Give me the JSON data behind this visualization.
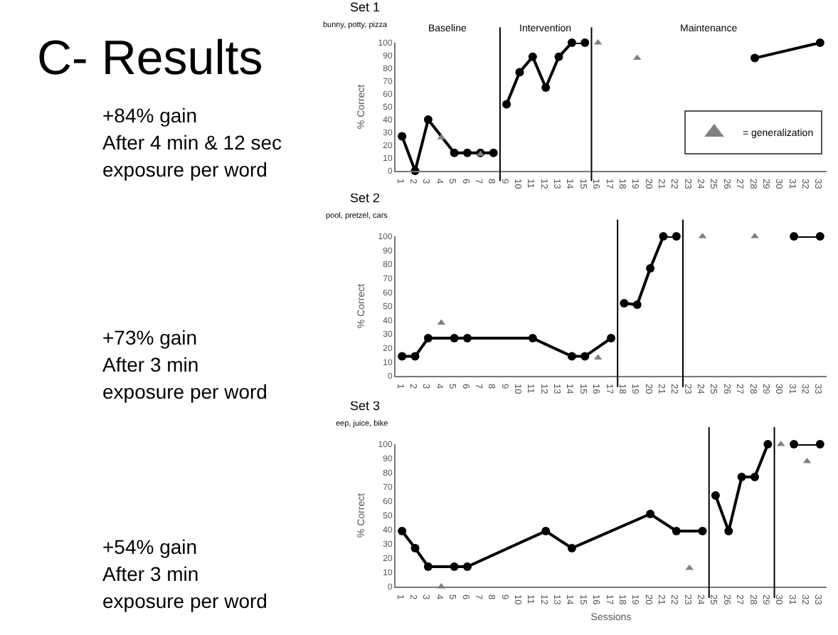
{
  "chart_data": [
    {
      "type": "other",
      "title": "C- Results",
      "annotations": [
        "+84% gain\nAfter 4 min & 12 sec\nexposure per word",
        "+73% gain\nAfter 3 min\nexposure per word",
        "+54% gain\nAfter 3 min\nexposure per word"
      ]
    },
    {
      "type": "line",
      "title": "Set 1",
      "subtitle": "bunny, potty, pizza",
      "ylabel": "% Correct",
      "xlim": [
        0.5,
        33.5
      ],
      "xticks": [
        1,
        2,
        3,
        4,
        5,
        6,
        7,
        8,
        9,
        10,
        11,
        12,
        13,
        14,
        15,
        16,
        17,
        18,
        19,
        20,
        21,
        22,
        23,
        24,
        25,
        26,
        27,
        28,
        29,
        30,
        31,
        32,
        33
      ],
      "ylim": [
        0,
        100
      ],
      "yticks": [
        0,
        10,
        20,
        30,
        40,
        50,
        60,
        70,
        80,
        90,
        100
      ],
      "grid": false,
      "legend": "right",
      "annotations": [
        "Baseline",
        "Intervention",
        "Maintenance"
      ],
      "ref_lines": [
        {
          "axis": "x",
          "value": 8.5
        },
        {
          "axis": "x",
          "value": 15.5
        }
      ],
      "series": [
        {
          "color": "#000000",
          "marker": "circle",
          "x": [
            1,
            2,
            3,
            5,
            6,
            7,
            8
          ],
          "values": [
            27,
            0,
            40,
            14,
            14,
            14,
            14
          ]
        },
        {
          "color": "#000000",
          "marker": "circle",
          "x": [
            9,
            10,
            11,
            12,
            13,
            14,
            15
          ],
          "values": [
            52,
            77,
            89,
            65,
            89,
            100,
            100
          ]
        },
        {
          "color": "#000000",
          "marker": "circle",
          "x": [
            28,
            33
          ],
          "values": [
            88,
            100
          ]
        },
        {
          "name": "= generalization",
          "type": "scatter",
          "color": "#808080",
          "marker": "triangle",
          "x": [
            4,
            7,
            16,
            19
          ],
          "values": [
            26,
            13,
            100,
            88
          ]
        }
      ]
    },
    {
      "type": "line",
      "title": "Set 2",
      "subtitle": "pool, pretzel, cars",
      "ylabel": "% Correct",
      "xlim": [
        0.5,
        33.5
      ],
      "xticks": [
        1,
        2,
        3,
        4,
        5,
        6,
        7,
        8,
        9,
        10,
        11,
        12,
        13,
        14,
        15,
        16,
        17,
        18,
        19,
        20,
        21,
        22,
        23,
        24,
        25,
        26,
        27,
        28,
        29,
        30,
        31,
        32,
        33
      ],
      "ylim": [
        0,
        100
      ],
      "yticks": [
        0,
        10,
        20,
        30,
        40,
        50,
        60,
        70,
        80,
        90,
        100
      ],
      "grid": false,
      "legend": false,
      "ref_lines": [
        {
          "axis": "x",
          "value": 17.5
        },
        {
          "axis": "x",
          "value": 22.5
        }
      ],
      "series": [
        {
          "color": "#000000",
          "marker": "circle",
          "x": [
            1,
            2,
            3,
            5,
            6,
            11,
            14,
            15,
            17
          ],
          "values": [
            14,
            14,
            27,
            27,
            27,
            27,
            14,
            14,
            27
          ]
        },
        {
          "color": "#000000",
          "marker": "circle",
          "x": [
            18,
            19,
            20,
            21,
            22
          ],
          "values": [
            52,
            51,
            77,
            100,
            100
          ]
        },
        {
          "color": "#000000",
          "marker": "circle",
          "x": [
            31,
            33
          ],
          "values": [
            100,
            100
          ]
        },
        {
          "type": "scatter",
          "color": "#808080",
          "marker": "triangle",
          "x": [
            4,
            16,
            24,
            28
          ],
          "values": [
            38,
            13,
            100,
            100
          ]
        }
      ]
    },
    {
      "type": "line",
      "title": "Set 3",
      "subtitle": "eep, juice, bike",
      "ylabel": "% Correct",
      "xlabel": "Sessions",
      "xlim": [
        0.5,
        33.5
      ],
      "xticks": [
        1,
        2,
        3,
        4,
        5,
        6,
        7,
        8,
        9,
        10,
        11,
        12,
        13,
        14,
        15,
        16,
        17,
        18,
        19,
        20,
        21,
        22,
        23,
        24,
        25,
        26,
        27,
        28,
        29,
        30,
        31,
        32,
        33
      ],
      "ylim": [
        0,
        100
      ],
      "yticks": [
        0,
        10,
        20,
        30,
        40,
        50,
        60,
        70,
        80,
        90,
        100
      ],
      "grid": false,
      "legend": false,
      "ref_lines": [
        {
          "axis": "x",
          "value": 24.5
        },
        {
          "axis": "x",
          "value": 29.5
        }
      ],
      "series": [
        {
          "color": "#000000",
          "marker": "circle",
          "x": [
            1,
            2,
            3,
            5,
            6,
            12,
            14,
            20,
            22,
            24
          ],
          "values": [
            39,
            27,
            14,
            14,
            14,
            39,
            27,
            51,
            39,
            39
          ]
        },
        {
          "color": "#000000",
          "marker": "circle",
          "x": [
            25,
            26,
            27,
            28,
            29
          ],
          "values": [
            64,
            39,
            77,
            77,
            100
          ]
        },
        {
          "color": "#000000",
          "marker": "circle",
          "x": [
            31,
            33
          ],
          "values": [
            100,
            100
          ]
        },
        {
          "type": "scatter",
          "color": "#808080",
          "marker": "triangle",
          "x": [
            4,
            23,
            30,
            32
          ],
          "values": [
            0,
            13,
            100,
            88
          ]
        }
      ]
    }
  ]
}
